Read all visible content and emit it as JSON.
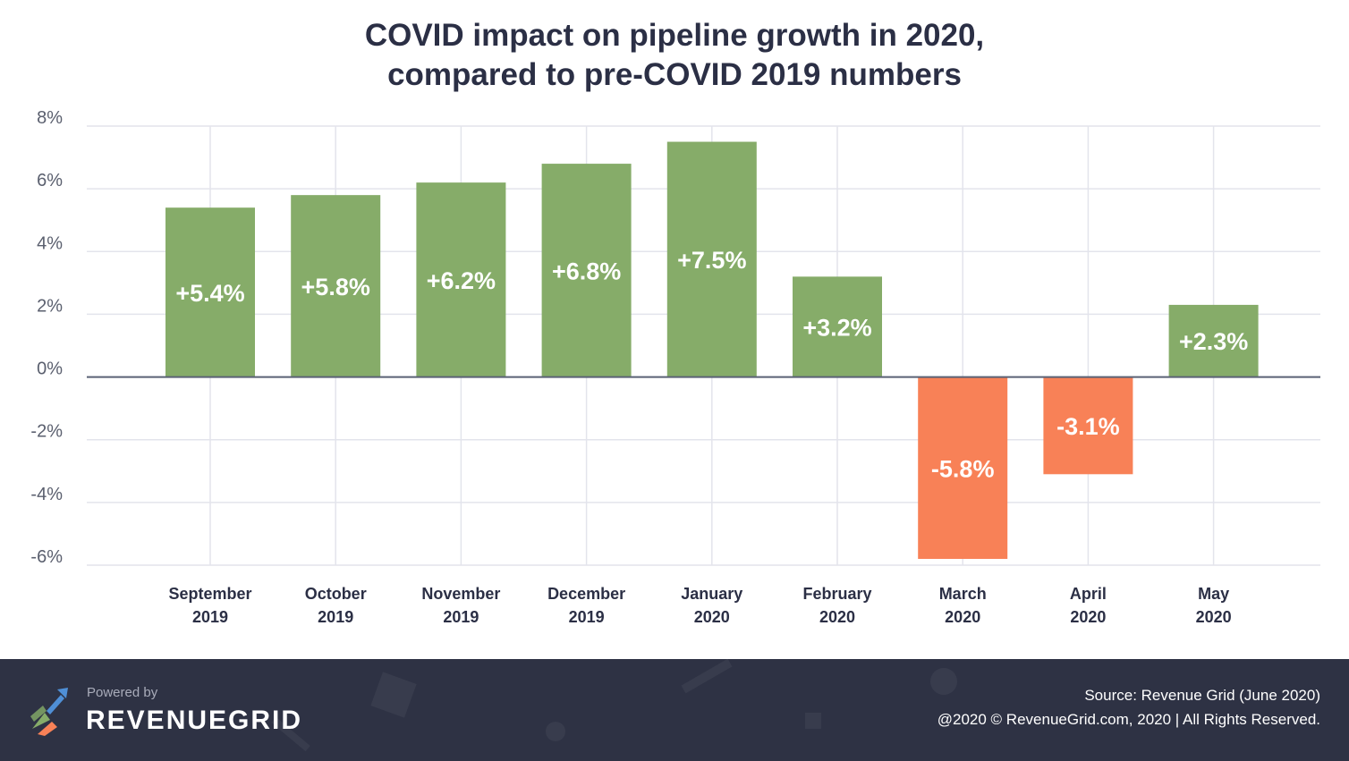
{
  "title_line1": "COVID impact on pipeline growth in 2020,",
  "title_line2": "compared to pre-COVID 2019 numbers",
  "chart_data": {
    "type": "bar",
    "title": "COVID impact on pipeline growth in 2020, compared to pre-COVID 2019 numbers",
    "categories": [
      [
        "September",
        "2019"
      ],
      [
        "October",
        "2019"
      ],
      [
        "November",
        "2019"
      ],
      [
        "December",
        "2019"
      ],
      [
        "January",
        "2020"
      ],
      [
        "February",
        "2020"
      ],
      [
        "March",
        "2020"
      ],
      [
        "April",
        "2020"
      ],
      [
        "May",
        "2020"
      ]
    ],
    "values": [
      5.4,
      5.8,
      6.2,
      6.8,
      7.5,
      3.2,
      -5.8,
      -3.1,
      2.3
    ],
    "value_labels": [
      "+5.4%",
      "+5.8%",
      "+6.2%",
      "+6.8%",
      "+7.5%",
      "+3.2%",
      "-5.8%",
      "-3.1%",
      "+2.3%"
    ],
    "yticks": [
      8,
      6,
      4,
      2,
      0,
      -2,
      -4,
      -6
    ],
    "ytick_labels": [
      "8%",
      "6%",
      "4%",
      "2%",
      "0%",
      "-2%",
      "-4%",
      "-6%"
    ],
    "ylim": [
      -6,
      8
    ],
    "grid": true,
    "xlabel": "",
    "ylabel": "",
    "colors": {
      "positive": "#86ac69",
      "negative": "#f88157",
      "grid": "#e3e4ec",
      "zero_line": "#5a6275",
      "axis_text": "#5a5f6e",
      "category_text": "#2b2f45"
    }
  },
  "footer": {
    "powered_by": "Powered by",
    "brand": "REVENUEGRID",
    "source": "Source: Revenue Grid (June 2020)",
    "copyright": "@2020 © RevenueGrid.com, 2020 | All Rights Reserved.",
    "background": "#2e3244",
    "logo_icon": "revenuegrid-logo-icon"
  }
}
